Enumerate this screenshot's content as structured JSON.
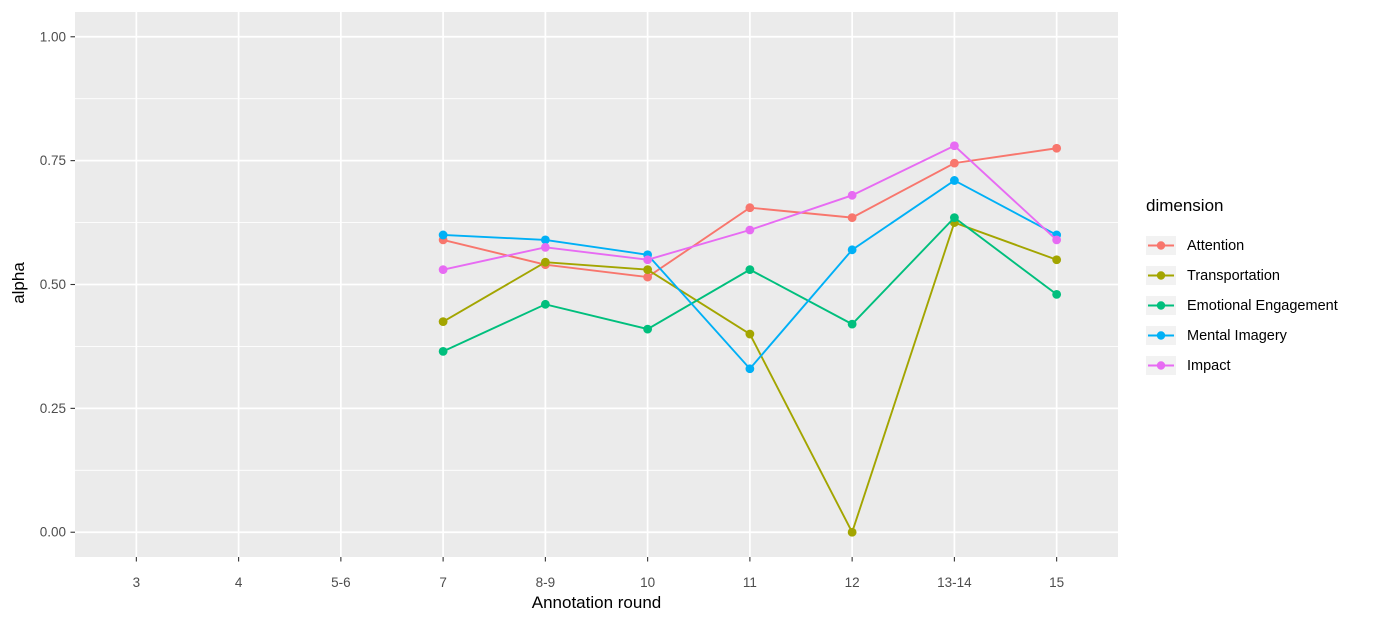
{
  "chart_data": {
    "type": "line",
    "title": "",
    "xlabel": "Annotation round",
    "ylabel": "alpha",
    "legend_title": "dimension",
    "legend_position": "right",
    "grid": true,
    "ylim": [
      0,
      1
    ],
    "categories": [
      "3",
      "4",
      "5-6",
      "7",
      "8-9",
      "10",
      "11",
      "12",
      "13-14",
      "15"
    ],
    "y_ticks": [
      {
        "value": 0.0,
        "label": "0.00"
      },
      {
        "value": 0.25,
        "label": "0.25"
      },
      {
        "value": 0.5,
        "label": "0.50"
      },
      {
        "value": 0.75,
        "label": "0.75"
      },
      {
        "value": 1.0,
        "label": "1.00"
      }
    ],
    "y_minor_ticks": [
      0.125,
      0.375,
      0.625,
      0.875
    ],
    "series": [
      {
        "name": "Attention",
        "color": "#F8766D",
        "values": [
          null,
          null,
          null,
          0.59,
          0.54,
          0.515,
          0.655,
          0.635,
          0.745,
          0.775
        ]
      },
      {
        "name": "Transportation",
        "color": "#A3A500",
        "values": [
          null,
          null,
          null,
          0.425,
          0.545,
          0.53,
          0.4,
          0.0,
          0.625,
          0.55
        ]
      },
      {
        "name": "Emotional Engagement",
        "color": "#00BF7D",
        "values": [
          null,
          null,
          null,
          0.365,
          0.46,
          0.41,
          0.53,
          0.42,
          0.635,
          0.48
        ]
      },
      {
        "name": "Mental Imagery",
        "color": "#00B0F6",
        "values": [
          null,
          null,
          null,
          0.6,
          0.59,
          0.56,
          0.33,
          0.57,
          0.71,
          0.6
        ]
      },
      {
        "name": "Impact",
        "color": "#E76BF3",
        "values": [
          null,
          null,
          null,
          0.53,
          0.575,
          0.55,
          0.61,
          0.68,
          0.78,
          0.59
        ]
      }
    ]
  },
  "colors": {
    "panel_bg": "#EBEBEB",
    "grid": "#FFFFFF",
    "tick_mark": "#333333",
    "tick_label": "#4D4D4D",
    "axis_title": "#000000",
    "legend_key_bg": "#F2F2F2"
  }
}
